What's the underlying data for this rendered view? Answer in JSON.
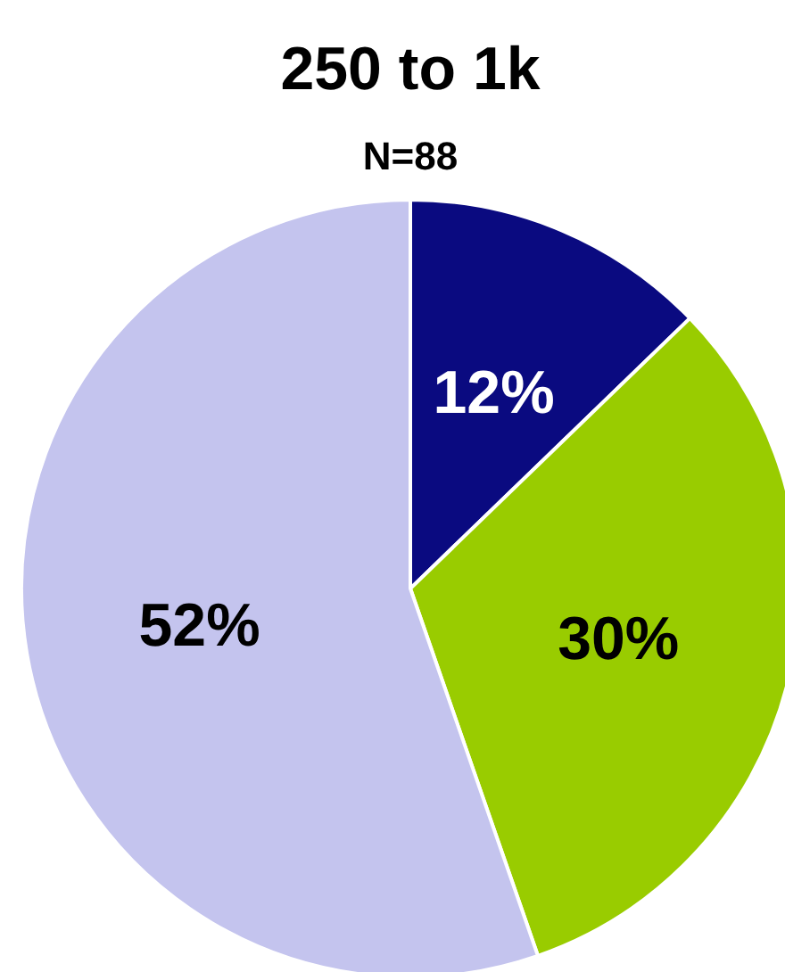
{
  "chart_data": {
    "type": "pie",
    "title": "250 to 1k",
    "subtitle": "N=88",
    "categories": [
      null,
      null,
      null
    ],
    "values": [
      12,
      30,
      52
    ],
    "value_labels": [
      "12%",
      "30%",
      "52%"
    ],
    "colors": [
      "#0a0a80",
      "#99cc00",
      "#c4c4ee"
    ]
  }
}
